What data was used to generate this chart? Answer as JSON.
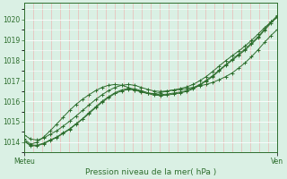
{
  "title": "Pression niveau de la mer( hPa )",
  "xlabel_left": "Meteu",
  "xlabel_right": "Ven",
  "ylim": [
    1013.5,
    1020.8
  ],
  "yticks": [
    1014,
    1015,
    1016,
    1017,
    1018,
    1019,
    1020
  ],
  "background_color": "#daf0e4",
  "grid_color_h": "#ffffff",
  "grid_color_v": "#f0aaaa",
  "line_color": "#2d6e2d",
  "n_points": 40,
  "series": [
    [
      1014.05,
      1013.85,
      1013.85,
      1013.95,
      1014.1,
      1014.25,
      1014.45,
      1014.65,
      1014.9,
      1015.15,
      1015.45,
      1015.72,
      1016.0,
      1016.22,
      1016.42,
      1016.55,
      1016.62,
      1016.6,
      1016.52,
      1016.42,
      1016.35,
      1016.32,
      1016.35,
      1016.4,
      1016.45,
      1016.52,
      1016.65,
      1016.82,
      1017.02,
      1017.25,
      1017.52,
      1017.78,
      1018.05,
      1018.3,
      1018.55,
      1018.85,
      1019.15,
      1019.52,
      1019.88,
      1020.2
    ],
    [
      1014.05,
      1013.82,
      1013.82,
      1013.92,
      1014.08,
      1014.22,
      1014.42,
      1014.62,
      1014.88,
      1015.12,
      1015.4,
      1015.68,
      1015.95,
      1016.18,
      1016.38,
      1016.5,
      1016.58,
      1016.55,
      1016.48,
      1016.38,
      1016.3,
      1016.28,
      1016.3,
      1016.35,
      1016.4,
      1016.48,
      1016.6,
      1016.78,
      1016.98,
      1017.2,
      1017.48,
      1017.75,
      1018.0,
      1018.25,
      1018.5,
      1018.8,
      1019.1,
      1019.48,
      1019.82,
      1020.15
    ],
    [
      1014.35,
      1014.15,
      1014.1,
      1014.2,
      1014.38,
      1014.55,
      1014.78,
      1015.02,
      1015.28,
      1015.55,
      1015.82,
      1016.08,
      1016.32,
      1016.52,
      1016.68,
      1016.78,
      1016.82,
      1016.78,
      1016.68,
      1016.58,
      1016.5,
      1016.48,
      1016.5,
      1016.55,
      1016.62,
      1016.7,
      1016.82,
      1017.0,
      1017.2,
      1017.45,
      1017.72,
      1017.98,
      1018.22,
      1018.45,
      1018.7,
      1018.98,
      1019.28,
      1019.6,
      1019.88,
      1020.1
    ],
    [
      1014.15,
      1013.9,
      1014.0,
      1014.25,
      1014.55,
      1014.88,
      1015.22,
      1015.55,
      1015.85,
      1016.1,
      1016.32,
      1016.52,
      1016.68,
      1016.78,
      1016.82,
      1016.78,
      1016.68,
      1016.55,
      1016.45,
      1016.38,
      1016.38,
      1016.42,
      1016.5,
      1016.55,
      1016.58,
      1016.62,
      1016.68,
      1016.75,
      1016.82,
      1016.92,
      1017.05,
      1017.2,
      1017.38,
      1017.62,
      1017.88,
      1018.18,
      1018.52,
      1018.88,
      1019.22,
      1019.52
    ]
  ]
}
